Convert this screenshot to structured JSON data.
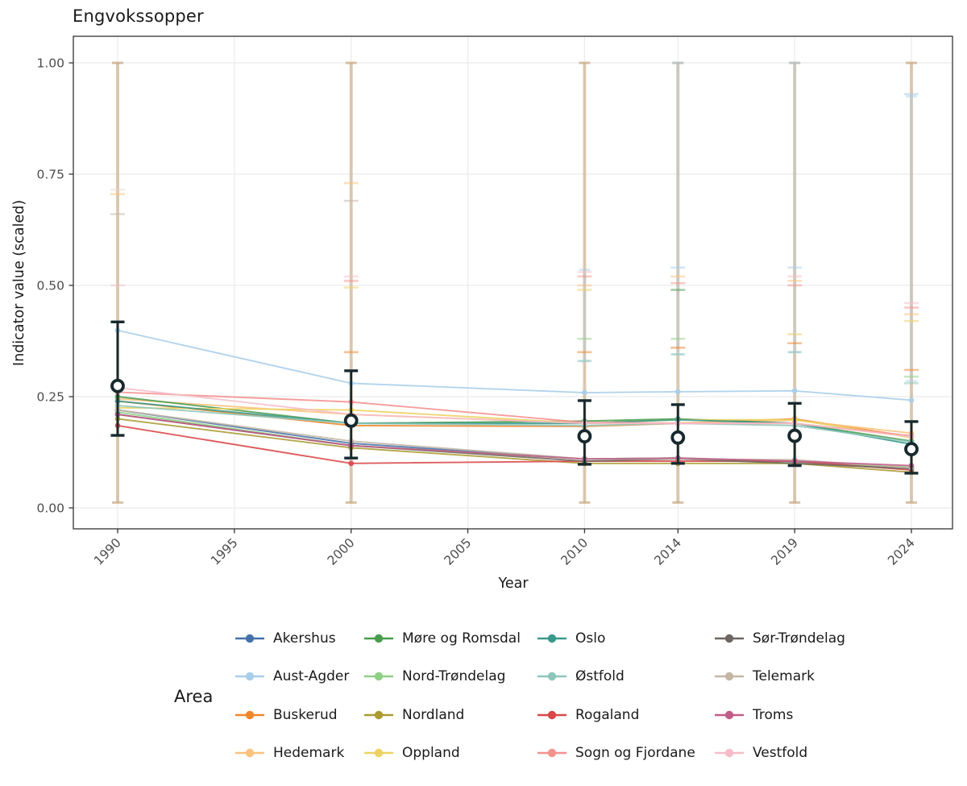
{
  "chart_data": {
    "type": "line",
    "title": "Engvokssopper",
    "xlabel": "Year",
    "ylabel": "Indicator value (scaled)",
    "legend": {
      "title": "Area",
      "position": "bottom",
      "columns": 4
    },
    "grid": true,
    "x_tick_years": [
      1990,
      1995,
      2000,
      2005,
      2010,
      2014,
      2019,
      2024
    ],
    "x_tick_labels": [
      "1990",
      "1995",
      "2000",
      "2005",
      "2010",
      "2014",
      "2019",
      "2024"
    ],
    "y_tick_values": [
      0,
      0.25,
      0.5,
      0.75,
      1
    ],
    "y_tick_labels": [
      "0.00",
      "0.25",
      "0.50",
      "0.75",
      "1.00"
    ],
    "xlim": [
      1988.1,
      2025.8
    ],
    "ylim": [
      -0.047,
      1.06
    ],
    "x": [
      1990,
      2000,
      2010,
      2014,
      2019,
      2024
    ],
    "series": [
      {
        "name": "Akershus",
        "color": "#4472a8",
        "values": [
          0.22,
          0.145,
          0.11,
          0.112,
          0.104,
          0.09
        ]
      },
      {
        "name": "Aust-Agder",
        "color": "#a8cee9",
        "values": [
          0.399,
          0.28,
          0.259,
          0.261,
          0.263,
          0.242
        ]
      },
      {
        "name": "Buskerud",
        "color": "#f0862c",
        "values": [
          0.24,
          0.185,
          0.183,
          0.19,
          0.2,
          0.16
        ]
      },
      {
        "name": "Hedemark",
        "color": "#fbc17d",
        "values": [
          0.245,
          0.21,
          0.19,
          0.191,
          0.197,
          0.168
        ]
      },
      {
        "name": "Møre og Romsdal",
        "color": "#4a9c4d",
        "values": [
          0.25,
          0.19,
          0.195,
          0.2,
          0.19,
          0.15
        ]
      },
      {
        "name": "Nord-Trøndelag",
        "color": "#8fd086",
        "values": [
          0.215,
          0.14,
          0.11,
          0.112,
          0.1,
          0.092
        ]
      },
      {
        "name": "Nordland",
        "color": "#ab9b32",
        "values": [
          0.2,
          0.135,
          0.1,
          0.1,
          0.1,
          0.08
        ]
      },
      {
        "name": "Oppland",
        "color": "#ecd263",
        "values": [
          0.225,
          0.22,
          0.19,
          0.198,
          0.198,
          0.158
        ]
      },
      {
        "name": "Oslo",
        "color": "#38998c",
        "values": [
          0.24,
          0.19,
          0.19,
          0.198,
          0.19,
          0.143
        ]
      },
      {
        "name": "Østfold",
        "color": "#8ec7b9",
        "values": [
          0.23,
          0.19,
          0.185,
          0.19,
          0.185,
          0.148
        ]
      },
      {
        "name": "Rogaland",
        "color": "#d9474a",
        "values": [
          0.185,
          0.1,
          0.105,
          0.105,
          0.105,
          0.085
        ]
      },
      {
        "name": "Sogn og Fjordane",
        "color": "#f5918e",
        "values": [
          0.26,
          0.238,
          0.192,
          0.19,
          0.19,
          0.162
        ]
      },
      {
        "name": "Sør-Trøndelag",
        "color": "#6e6660",
        "values": [
          0.21,
          0.14,
          0.105,
          0.11,
          0.1,
          0.088
        ]
      },
      {
        "name": "Telemark",
        "color": "#c4b6a5",
        "values": [
          0.22,
          0.15,
          0.11,
          0.11,
          0.108,
          0.09
        ]
      },
      {
        "name": "Troms",
        "color": "#c25d88",
        "values": [
          0.21,
          0.14,
          0.11,
          0.112,
          0.105,
          0.095
        ]
      },
      {
        "name": "Vestfold",
        "color": "#f6bdc8",
        "values": [
          0.27,
          0.21,
          0.19,
          0.19,
          0.19,
          0.16
        ]
      }
    ],
    "summary_points": {
      "color": "#17292e",
      "values": [
        0.274,
        0.196,
        0.161,
        0.158,
        0.162,
        0.132
      ],
      "ci_low": [
        0.163,
        0.112,
        0.098,
        0.1,
        0.095,
        0.078
      ],
      "ci_high": [
        0.418,
        0.308,
        0.241,
        0.232,
        0.235,
        0.194
      ]
    },
    "background_bars": [
      {
        "year": 1990,
        "lo": 0.012,
        "hi": 1.0,
        "color": "#c3a176",
        "alpha": 0.55,
        "w": 4
      },
      {
        "year": 2000,
        "lo": 0.012,
        "hi": 1.0,
        "color": "#c3a176",
        "alpha": 0.55,
        "w": 4
      },
      {
        "year": 2010,
        "lo": 0.012,
        "hi": 1.0,
        "color": "#c3a176",
        "alpha": 0.55,
        "w": 4
      },
      {
        "year": 2014,
        "lo": 0.012,
        "hi": 1.0,
        "color": "#c3a176",
        "alpha": 0.55,
        "w": 4
      },
      {
        "year": 2019,
        "lo": 0.012,
        "hi": 1.0,
        "color": "#c3a176",
        "alpha": 0.55,
        "w": 4
      },
      {
        "year": 2024,
        "lo": 0.012,
        "hi": 1.0,
        "color": "#c3a176",
        "alpha": 0.55,
        "w": 4
      },
      {
        "year": 2010,
        "lo": 0.33,
        "hi": 0.535,
        "color": "#a8cee9",
        "alpha": 0.35,
        "w": 3
      },
      {
        "year": 2014,
        "lo": 0.345,
        "hi": 1.0,
        "color": "#a8cee9",
        "alpha": 0.35,
        "w": 3
      },
      {
        "year": 2019,
        "lo": 0.35,
        "hi": 1.0,
        "color": "#a8cee9",
        "alpha": 0.35,
        "w": 3
      },
      {
        "year": 2024,
        "lo": 0.285,
        "hi": 0.925,
        "color": "#a8cee9",
        "alpha": 0.35,
        "w": 3
      }
    ],
    "faint_caps": [
      {
        "year": 1990,
        "value": 0.715,
        "color": "#e8d9c3"
      },
      {
        "year": 1990,
        "value": 0.705,
        "color": "#fbc17d"
      },
      {
        "year": 1990,
        "value": 0.66,
        "color": "#c4b6a5"
      },
      {
        "year": 1990,
        "value": 0.5,
        "color": "#f6bdc8"
      },
      {
        "year": 2000,
        "value": 0.73,
        "color": "#fbc17d"
      },
      {
        "year": 2000,
        "value": 0.69,
        "color": "#c4b6a5"
      },
      {
        "year": 2000,
        "value": 0.52,
        "color": "#f6bdc8"
      },
      {
        "year": 2000,
        "value": 0.51,
        "color": "#f5918e"
      },
      {
        "year": 2000,
        "value": 0.495,
        "color": "#ecd263"
      },
      {
        "year": 2000,
        "value": 0.35,
        "color": "#f0862c"
      },
      {
        "year": 2010,
        "value": 0.53,
        "color": "#f6bdc8"
      },
      {
        "year": 2010,
        "value": 0.52,
        "color": "#f5918e"
      },
      {
        "year": 2010,
        "value": 0.5,
        "color": "#fbc17d"
      },
      {
        "year": 2010,
        "value": 0.49,
        "color": "#ecd263"
      },
      {
        "year": 2010,
        "value": 0.38,
        "color": "#8fd086"
      },
      {
        "year": 2010,
        "value": 0.35,
        "color": "#f0862c"
      },
      {
        "year": 2010,
        "value": 0.33,
        "color": "#8ec7b9"
      },
      {
        "year": 2014,
        "value": 0.54,
        "color": "#a8cee9"
      },
      {
        "year": 2014,
        "value": 0.52,
        "color": "#fbc17d"
      },
      {
        "year": 2014,
        "value": 0.505,
        "color": "#f5918e"
      },
      {
        "year": 2014,
        "value": 0.49,
        "color": "#4a9c4d"
      },
      {
        "year": 2014,
        "value": 0.38,
        "color": "#8fd086"
      },
      {
        "year": 2014,
        "value": 0.36,
        "color": "#f0862c"
      },
      {
        "year": 2014,
        "value": 0.345,
        "color": "#8ec7b9"
      },
      {
        "year": 2019,
        "value": 0.54,
        "color": "#a8cee9"
      },
      {
        "year": 2019,
        "value": 0.52,
        "color": "#f6bdc8"
      },
      {
        "year": 2019,
        "value": 0.51,
        "color": "#fbc17d"
      },
      {
        "year": 2019,
        "value": 0.5,
        "color": "#f5918e"
      },
      {
        "year": 2019,
        "value": 0.39,
        "color": "#ecd263"
      },
      {
        "year": 2019,
        "value": 0.37,
        "color": "#f0862c"
      },
      {
        "year": 2019,
        "value": 0.35,
        "color": "#8ec7b9"
      },
      {
        "year": 2024,
        "value": 0.93,
        "color": "#a8cee9"
      },
      {
        "year": 2024,
        "value": 0.46,
        "color": "#f6bdc8"
      },
      {
        "year": 2024,
        "value": 0.45,
        "color": "#f5918e"
      },
      {
        "year": 2024,
        "value": 0.435,
        "color": "#fbc17d"
      },
      {
        "year": 2024,
        "value": 0.42,
        "color": "#ecd263"
      },
      {
        "year": 2024,
        "value": 0.31,
        "color": "#f0862c"
      },
      {
        "year": 2024,
        "value": 0.295,
        "color": "#8fd086"
      },
      {
        "year": 2024,
        "value": 0.28,
        "color": "#8ec7b9"
      }
    ]
  }
}
